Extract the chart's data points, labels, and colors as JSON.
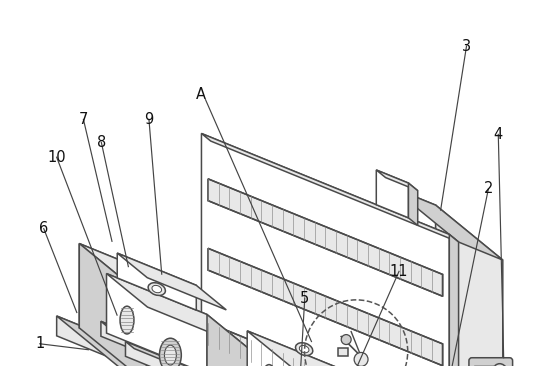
{
  "bg_color": "#ffffff",
  "lc": "#4a4a4a",
  "lw": 1.1,
  "figsize": [
    5.47,
    3.67
  ],
  "dpi": 100,
  "label_fontsize": 10.5
}
